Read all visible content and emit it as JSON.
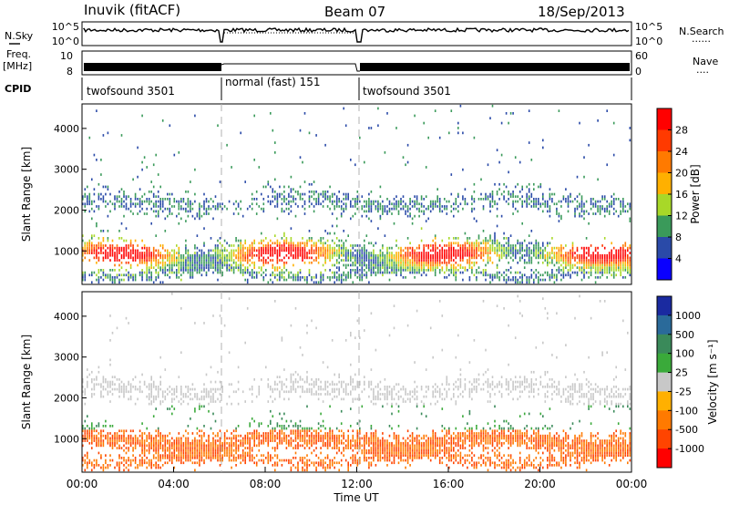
{
  "header": {
    "station": "Inuvik (fitACF)",
    "beam": "Beam 07",
    "date": "18/Sep/2013"
  },
  "labels": {
    "nsky": "N.Sky",
    "freq": "Freq.",
    "freq_unit": "[MHz]",
    "cpid": "CPID",
    "nsearch": "N.Search",
    "nave": "Nave",
    "dotted": "......",
    "dotted_short": "...."
  },
  "chart_data": [
    {
      "type": "line",
      "name": "noise-panel",
      "left_ticks": [
        "10^5",
        "10^0"
      ],
      "right_ticks": [
        "10^5",
        "10^0"
      ]
    },
    {
      "type": "line",
      "name": "frequency-panel",
      "left_ticks": [
        "10",
        "8"
      ],
      "right_ticks": [
        "60",
        "0"
      ]
    },
    {
      "type": "table",
      "name": "cpid-panel",
      "segments": [
        {
          "label": "twofsound 3501",
          "start_h": 0,
          "end_h": 6
        },
        {
          "label": "normal (fast) 151",
          "start_h": 6,
          "end_h": 12
        },
        {
          "label": "twofsound 3501",
          "start_h": 12,
          "end_h": 24
        }
      ]
    },
    {
      "type": "heatmap",
      "name": "power-panel",
      "ylabel": "Slant Range [km]",
      "ylim": [
        180,
        4600
      ],
      "yticks": [
        1000,
        2000,
        3000,
        4000
      ],
      "colorbar_label": "Power [dB]",
      "colorbar_ticks": [
        "28",
        "24",
        "20",
        "16",
        "12",
        "8",
        "4"
      ],
      "colorbar_colors": [
        "#ff0000",
        "#ff3a00",
        "#ff7a00",
        "#ffb000",
        "#a8d828",
        "#3a9a5a",
        "#2a4aa8",
        "#0a00ff"
      ]
    },
    {
      "type": "heatmap",
      "name": "velocity-panel",
      "ylabel": "Slant Range [km]",
      "ylim": [
        180,
        4600
      ],
      "yticks": [
        1000,
        2000,
        3000,
        4000
      ],
      "xlabel": "Time UT",
      "xticks": [
        "00:00",
        "04:00",
        "08:00",
        "12:00",
        "16:00",
        "20:00",
        "00:00"
      ],
      "xlim": [
        0,
        24
      ],
      "colorbar_label": "Velocity [m s⁻¹]",
      "colorbar_ticks": [
        "1000",
        "500",
        "100",
        "25",
        "-25",
        "-100",
        "-500",
        "-1000"
      ],
      "colorbar_colors": [
        "#1a2aa0",
        "#2a6a9a",
        "#3a8a5a",
        "#3aaa3a",
        "#c8c8c8",
        "#ffb000",
        "#ff7a00",
        "#ff4400",
        "#ff0000"
      ]
    }
  ]
}
